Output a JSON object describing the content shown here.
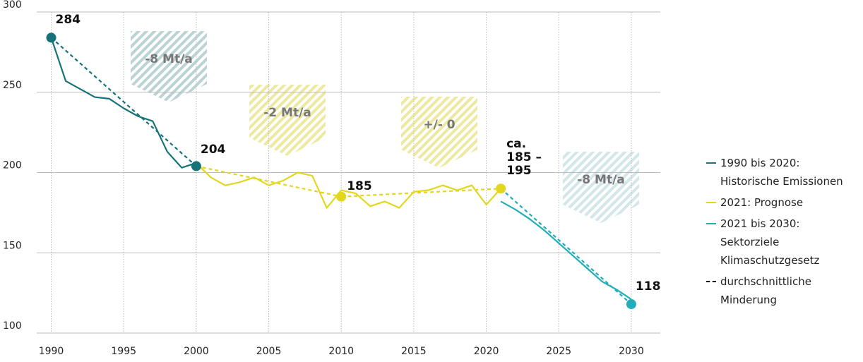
{
  "chart_data": {
    "type": "line",
    "x": [
      1990,
      1991,
      1992,
      1993,
      1994,
      1995,
      1996,
      1997,
      1998,
      1999,
      2000,
      2001,
      2002,
      2003,
      2004,
      2005,
      2006,
      2007,
      2008,
      2009,
      2010,
      2011,
      2012,
      2013,
      2014,
      2015,
      2016,
      2017,
      2018,
      2019,
      2020,
      2021,
      2022,
      2023,
      2024,
      2025,
      2026,
      2027,
      2028,
      2029,
      2030
    ],
    "series": [
      {
        "name": "1990 bis 2020:\nHistorische Emissionen",
        "color": "#17737a",
        "values": [
          284,
          257,
          252,
          247,
          246,
          240,
          235,
          232,
          213,
          203,
          206,
          null,
          null,
          null,
          null,
          null,
          null,
          null,
          null,
          null,
          null,
          null,
          null,
          null,
          null,
          null,
          null,
          null,
          null,
          null,
          null,
          null,
          null,
          null,
          null,
          null,
          null,
          null,
          null,
          null,
          null
        ]
      },
      {
        "name": "2021: Prognose",
        "color": "#e2d71e",
        "values": [
          null,
          null,
          null,
          null,
          null,
          null,
          null,
          null,
          null,
          null,
          206,
          197,
          192,
          194,
          197,
          192,
          195,
          200,
          198,
          178,
          189,
          187,
          179,
          182,
          178,
          188,
          189,
          192,
          189,
          192,
          180,
          190,
          null,
          null,
          null,
          null,
          null,
          null,
          null,
          null,
          null
        ]
      },
      {
        "name": "2021 bis 2030:\nSektorziele\nKlimaschutzgesetz",
        "color": "#22aeb9",
        "values": [
          null,
          null,
          null,
          null,
          null,
          null,
          null,
          null,
          null,
          null,
          null,
          null,
          null,
          null,
          null,
          null,
          null,
          null,
          null,
          null,
          null,
          null,
          null,
          null,
          null,
          null,
          null,
          null,
          null,
          null,
          null,
          182,
          177,
          171,
          164,
          156,
          148,
          140,
          132,
          127,
          121
        ]
      }
    ],
    "trend": {
      "name": "durchschnittliche\nMinderung",
      "color": "#111111",
      "points": [
        {
          "x": 1990,
          "value": 284,
          "label": "284",
          "color": "#17737a"
        },
        {
          "x": 2000,
          "value": 204,
          "label": "204",
          "color": "#17737a"
        },
        {
          "x": 2010,
          "value": 185,
          "label": "185",
          "color": "#e2d71e"
        },
        {
          "x": 2021,
          "value": 190,
          "label": "ca.\n185 –\n195",
          "color": "#e2d71e"
        },
        {
          "x": 2030,
          "value": 118,
          "label": "118",
          "color": "#22aeb9"
        }
      ]
    },
    "annotations": [
      {
        "text": "-8 Mt/a",
        "color": "#bcd3d5"
      },
      {
        "text": "-2 Mt/a",
        "color": "#eee9a0"
      },
      {
        "text": "+/- 0",
        "color": "#eee9a0"
      },
      {
        "text": "-8 Mt/a",
        "color": "#d3e6ea"
      }
    ],
    "xlim": [
      1989,
      2032
    ],
    "xticks": [
      1990,
      1995,
      2000,
      2005,
      2010,
      2015,
      2020,
      2025,
      2030
    ],
    "ylim": [
      100,
      300
    ],
    "yticks": [
      100,
      150,
      200,
      250,
      300
    ],
    "grid": true
  }
}
